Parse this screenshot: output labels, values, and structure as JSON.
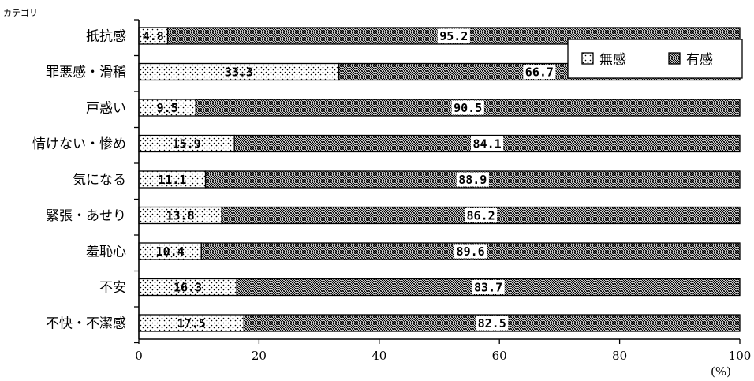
{
  "chart_data": {
    "type": "bar",
    "orientation": "horizontal",
    "stacked": true,
    "categories_label": "カテゴリ",
    "categories": [
      "抵抗感",
      "罪悪感・滑稽",
      "戸惑い",
      "情けない・惨め",
      "気になる",
      "緊張・あせり",
      "羞恥心",
      "不安",
      "不快・不潔感"
    ],
    "series": [
      {
        "name": "無感",
        "values": [
          4.8,
          33.3,
          9.5,
          15.9,
          11.1,
          13.8,
          10.4,
          16.3,
          17.5
        ],
        "pattern": "dotted"
      },
      {
        "name": "有感",
        "values": [
          95.2,
          66.7,
          90.5,
          84.1,
          88.9,
          86.2,
          89.6,
          83.7,
          82.5
        ],
        "pattern": "crosshatch"
      }
    ],
    "xlim": [
      0,
      100
    ],
    "xticks": [
      0,
      20,
      40,
      60,
      80,
      100
    ],
    "xlabel": "(%)",
    "legend_placement": "top-right",
    "grid": false
  }
}
